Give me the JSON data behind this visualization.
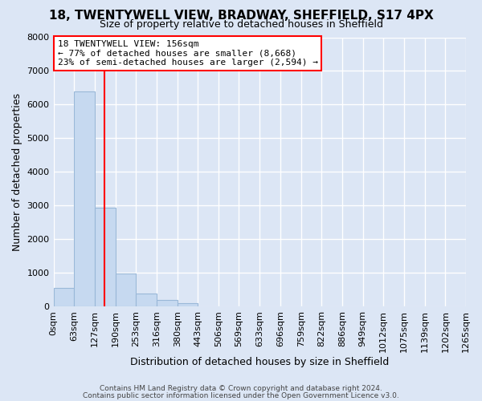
{
  "title": "18, TWENTYWELL VIEW, BRADWAY, SHEFFIELD, S17 4PX",
  "subtitle": "Size of property relative to detached houses in Sheffield",
  "xlabel": "Distribution of detached houses by size in Sheffield",
  "ylabel": "Number of detached properties",
  "bin_edges": [
    0,
    63,
    127,
    190,
    253,
    316,
    380,
    443,
    506,
    569,
    633,
    696,
    759,
    822,
    886,
    949,
    1012,
    1075,
    1139,
    1202,
    1265
  ],
  "bin_labels": [
    "0sqm",
    "63sqm",
    "127sqm",
    "190sqm",
    "253sqm",
    "316sqm",
    "380sqm",
    "443sqm",
    "506sqm",
    "569sqm",
    "633sqm",
    "696sqm",
    "759sqm",
    "822sqm",
    "886sqm",
    "949sqm",
    "1012sqm",
    "1075sqm",
    "1139sqm",
    "1202sqm",
    "1265sqm"
  ],
  "bar_heights": [
    550,
    6400,
    2930,
    980,
    380,
    190,
    90,
    0,
    0,
    0,
    0,
    0,
    0,
    0,
    0,
    0,
    0,
    0,
    0,
    0
  ],
  "bar_color": "#c6d9f0",
  "bar_edgecolor": "#9ab8d8",
  "vline_x": 156,
  "vline_color": "red",
  "annotation_title": "18 TWENTYWELL VIEW: 156sqm",
  "annotation_line1": "← 77% of detached houses are smaller (8,668)",
  "annotation_line2": "23% of semi-detached houses are larger (2,594) →",
  "annotation_box_color": "white",
  "annotation_box_edgecolor": "red",
  "ylim": [
    0,
    8000
  ],
  "yticks": [
    0,
    1000,
    2000,
    3000,
    4000,
    5000,
    6000,
    7000,
    8000
  ],
  "background_color": "#dce6f5",
  "plot_bg_color": "#dce6f5",
  "grid_color": "white",
  "title_fontsize": 11,
  "subtitle_fontsize": 9,
  "ylabel_fontsize": 9,
  "xlabel_fontsize": 9,
  "tick_labelsize": 8,
  "footer1": "Contains HM Land Registry data © Crown copyright and database right 2024.",
  "footer2": "Contains public sector information licensed under the Open Government Licence v3.0."
}
